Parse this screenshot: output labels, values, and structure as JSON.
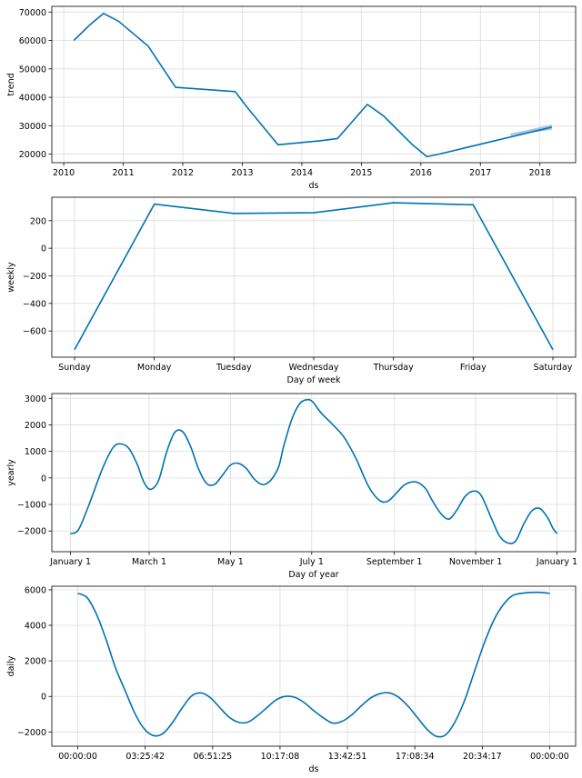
{
  "colors": {
    "line": "#0072B2",
    "band": "#8FB9DC",
    "grid": "#dcdcdc"
  },
  "chart_data": [
    {
      "type": "line",
      "xlabel": "ds",
      "ylabel": "trend",
      "x_ticks": [
        "2010",
        "2011",
        "2012",
        "2013",
        "2014",
        "2015",
        "2016",
        "2017",
        "2018"
      ],
      "y_ticks": [
        "20000",
        "30000",
        "40000",
        "50000",
        "60000",
        "70000"
      ],
      "xlim": [
        2009.8,
        2018.6
      ],
      "ylim": [
        17000,
        72000
      ],
      "grid": true,
      "series": [
        {
          "x": [
            2010.17,
            2010.45,
            2010.67,
            2010.92,
            2011.42,
            2011.88,
            2012.88,
            2013.1,
            2013.6,
            2014.3,
            2014.6,
            2015.1,
            2015.37,
            2015.85,
            2016.1,
            2016.3,
            2018.2
          ],
          "y": [
            60000,
            65700,
            69500,
            66800,
            58000,
            43500,
            42000,
            36000,
            23300,
            24700,
            25500,
            37500,
            33500,
            23500,
            19100,
            20000,
            29500
          ]
        }
      ],
      "uncertainty_band": {
        "x": [
          2017.5,
          2018.2
        ],
        "lower": [
          26500,
          28600
        ],
        "upper": [
          27200,
          30400
        ]
      }
    },
    {
      "type": "line",
      "xlabel": "Day of week",
      "ylabel": "weekly",
      "categories": [
        "Sunday",
        "Monday",
        "Tuesday",
        "Wednesday",
        "Thursday",
        "Friday",
        "Saturday"
      ],
      "y_ticks": [
        "200",
        "0",
        "−200",
        "−400",
        "−600"
      ],
      "ylim": [
        -790,
        370
      ],
      "grid": true,
      "series": [
        {
          "values": [
            -735,
            320,
            253,
            257,
            330,
            315,
            -735
          ]
        }
      ]
    },
    {
      "type": "line",
      "xlabel": "Day of year",
      "ylabel": "yearly",
      "x_ticks": [
        "January 1",
        "March 1",
        "May 1",
        "July 1",
        "September 1",
        "November 1",
        "January 1"
      ],
      "x_tick_days": [
        0,
        59,
        120,
        181,
        243,
        304,
        365
      ],
      "y_ticks": [
        "3000",
        "2000",
        "1000",
        "0",
        "−1000",
        "−2000"
      ],
      "xlim": [
        -14,
        379
      ],
      "ylim": [
        -2780,
        3180
      ],
      "grid": true,
      "series": [
        {
          "x": [
            0,
            6,
            14,
            24,
            32,
            38,
            44,
            50,
            55,
            60,
            66,
            72,
            78,
            84,
            90,
            96,
            102,
            108,
            114,
            120,
            126,
            132,
            138,
            144,
            150,
            156,
            160,
            166,
            172,
            178,
            182,
            188,
            196,
            205,
            214,
            224,
            232,
            238,
            244,
            251,
            259,
            266,
            272,
            278,
            284,
            290,
            296,
            302,
            308,
            316,
            322,
            328,
            334,
            340,
            346,
            352,
            358,
            362,
            365
          ],
          "y": [
            -2100,
            -1950,
            -1000,
            350,
            1150,
            1280,
            1100,
            520,
            -150,
            -430,
            -100,
            950,
            1700,
            1750,
            1200,
            350,
            -200,
            -250,
            100,
            480,
            550,
            350,
            -50,
            -250,
            -100,
            400,
            1200,
            2200,
            2800,
            2950,
            2850,
            2450,
            2050,
            1550,
            750,
            -350,
            -850,
            -880,
            -600,
            -250,
            -150,
            -380,
            -900,
            -1350,
            -1550,
            -1200,
            -700,
            -500,
            -650,
            -1550,
            -2200,
            -2450,
            -2380,
            -1750,
            -1250,
            -1150,
            -1500,
            -1900,
            -2100
          ]
        }
      ]
    },
    {
      "type": "line",
      "xlabel": "ds",
      "ylabel": "daily",
      "x_ticks": [
        "00:00:00",
        "03:25:42",
        "06:51:25",
        "10:17:08",
        "13:42:51",
        "17:08:34",
        "20:34:17",
        "00:00:00"
      ],
      "y_ticks": [
        "6000",
        "4000",
        "2000",
        "0",
        "−2000"
      ],
      "xlim": [
        -0.055,
        1.055
      ],
      "ylim": [
        -2800,
        6200
      ],
      "grid": true,
      "series": [
        {
          "x": [
            0,
            0.02,
            0.04,
            0.06,
            0.08,
            0.1,
            0.12,
            0.14,
            0.16,
            0.18,
            0.2,
            0.22,
            0.24,
            0.26,
            0.28,
            0.3,
            0.32,
            0.34,
            0.36,
            0.38,
            0.4,
            0.42,
            0.44,
            0.46,
            0.48,
            0.5,
            0.52,
            0.54,
            0.56,
            0.58,
            0.6,
            0.62,
            0.64,
            0.66,
            0.68,
            0.7,
            0.72,
            0.74,
            0.76,
            0.78,
            0.8,
            0.82,
            0.84,
            0.86,
            0.88,
            0.9,
            0.92,
            0.94,
            0.96,
            0.98,
            1.0
          ],
          "y": [
            5800,
            5550,
            4600,
            3200,
            1600,
            350,
            -900,
            -1800,
            -2200,
            -2100,
            -1500,
            -700,
            0,
            200,
            -50,
            -600,
            -1150,
            -1450,
            -1450,
            -1100,
            -650,
            -200,
            0,
            -50,
            -350,
            -800,
            -1200,
            -1500,
            -1400,
            -1050,
            -550,
            -100,
            150,
            200,
            -50,
            -550,
            -1200,
            -1850,
            -2250,
            -2150,
            -1400,
            -200,
            1350,
            2900,
            4200,
            5100,
            5650,
            5800,
            5850,
            5850,
            5800
          ]
        }
      ]
    }
  ]
}
